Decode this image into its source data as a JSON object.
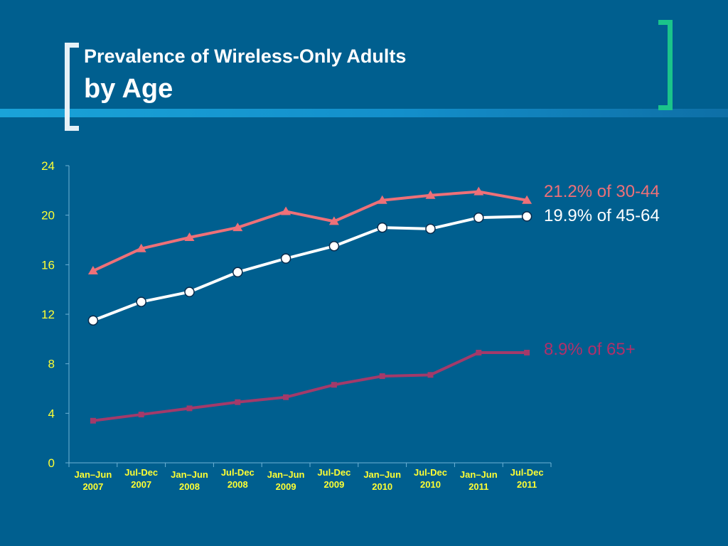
{
  "slide": {
    "title_line1": "Prevalence of Wireless-Only Adults",
    "title_line2": "by Age"
  },
  "colors": {
    "background": "#005f8f",
    "series_30_44": "#ee7078",
    "series_45_64": "#ffffff",
    "series_65_plus": "#a33a6a",
    "tick_label": "#ffff33",
    "axis": "#6fb3d6"
  },
  "chart_data": {
    "type": "line",
    "title": "",
    "xlabel": "",
    "ylabel": "",
    "ylim": [
      0,
      24
    ],
    "y_ticks": [
      0,
      4,
      8,
      12,
      16,
      20,
      24
    ],
    "categories": [
      [
        "Jan–Jun",
        "2007"
      ],
      [
        "Jul-Dec",
        "2007"
      ],
      [
        "Jan–Jun",
        "2008"
      ],
      [
        "Jul-Dec",
        "2008"
      ],
      [
        "Jan–Jun",
        "2009"
      ],
      [
        "Jul-Dec",
        "2009"
      ],
      [
        "Jan–Jun",
        "2010"
      ],
      [
        "Jul-Dec",
        "2010"
      ],
      [
        "Jan–Jun",
        "2011"
      ],
      [
        "Jul-Dec",
        "2011"
      ]
    ],
    "series": [
      {
        "key": "30-44",
        "marker": "triangle",
        "values": [
          15.5,
          17.3,
          18.2,
          19.0,
          20.3,
          19.5,
          21.2,
          21.6,
          21.9,
          21.2
        ]
      },
      {
        "key": "45-64",
        "marker": "circle",
        "values": [
          11.5,
          13.0,
          13.8,
          15.4,
          16.5,
          17.5,
          19.0,
          18.9,
          19.8,
          19.9
        ]
      },
      {
        "key": "65+",
        "marker": "square",
        "values": [
          3.4,
          3.9,
          4.4,
          4.9,
          5.3,
          6.3,
          7.0,
          7.1,
          8.9,
          8.9
        ]
      }
    ],
    "annotations": {
      "label_30_44": "21.2% of 30-44",
      "label_45_64": "19.9% of 45-64",
      "label_65_plus": "8.9% of 65+"
    },
    "grid": false,
    "legend": "none"
  }
}
